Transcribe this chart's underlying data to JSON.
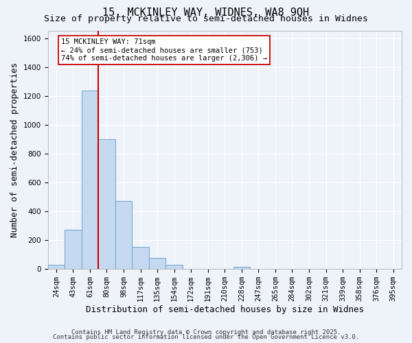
{
  "title": "15, MCKINLEY WAY, WIDNES, WA8 9QH",
  "subtitle": "Size of property relative to semi-detached houses in Widnes",
  "xlabel": "Distribution of semi-detached houses by size in Widnes",
  "ylabel": "Number of semi-detached properties",
  "categories": [
    "24sqm",
    "43sqm",
    "61sqm",
    "80sqm",
    "98sqm",
    "117sqm",
    "135sqm",
    "154sqm",
    "172sqm",
    "191sqm",
    "210sqm",
    "228sqm",
    "247sqm",
    "265sqm",
    "284sqm",
    "302sqm",
    "321sqm",
    "339sqm",
    "358sqm",
    "376sqm",
    "395sqm"
  ],
  "bar_values": [
    25,
    270,
    1235,
    900,
    470,
    150,
    75,
    28,
    0,
    0,
    0,
    15,
    0,
    0,
    0,
    0,
    0,
    0,
    0,
    0,
    0
  ],
  "bar_color": "#c5d9f0",
  "bar_edge_color": "#7aacd4",
  "bar_edge_width": 0.8,
  "vline_color": "#cc0000",
  "property_label": "15 MCKINLEY WAY: 71sqm",
  "pct_smaller": 24,
  "count_smaller": 753,
  "pct_larger": 74,
  "count_larger": 2306,
  "annotation_box_color": "#cc0000",
  "annotation_box_fill": "#ffffff",
  "ylim": [
    0,
    1650
  ],
  "yticks": [
    0,
    200,
    400,
    600,
    800,
    1000,
    1200,
    1400,
    1600
  ],
  "background_color": "#eef2f9",
  "grid_color": "#ffffff",
  "footer_line1": "Contains HM Land Registry data © Crown copyright and database right 2025.",
  "footer_line2": "Contains public sector information licensed under the Open Government Licence v3.0.",
  "title_fontsize": 11,
  "subtitle_fontsize": 9.5,
  "axis_label_fontsize": 9,
  "tick_fontsize": 7.5,
  "footer_fontsize": 6.5
}
